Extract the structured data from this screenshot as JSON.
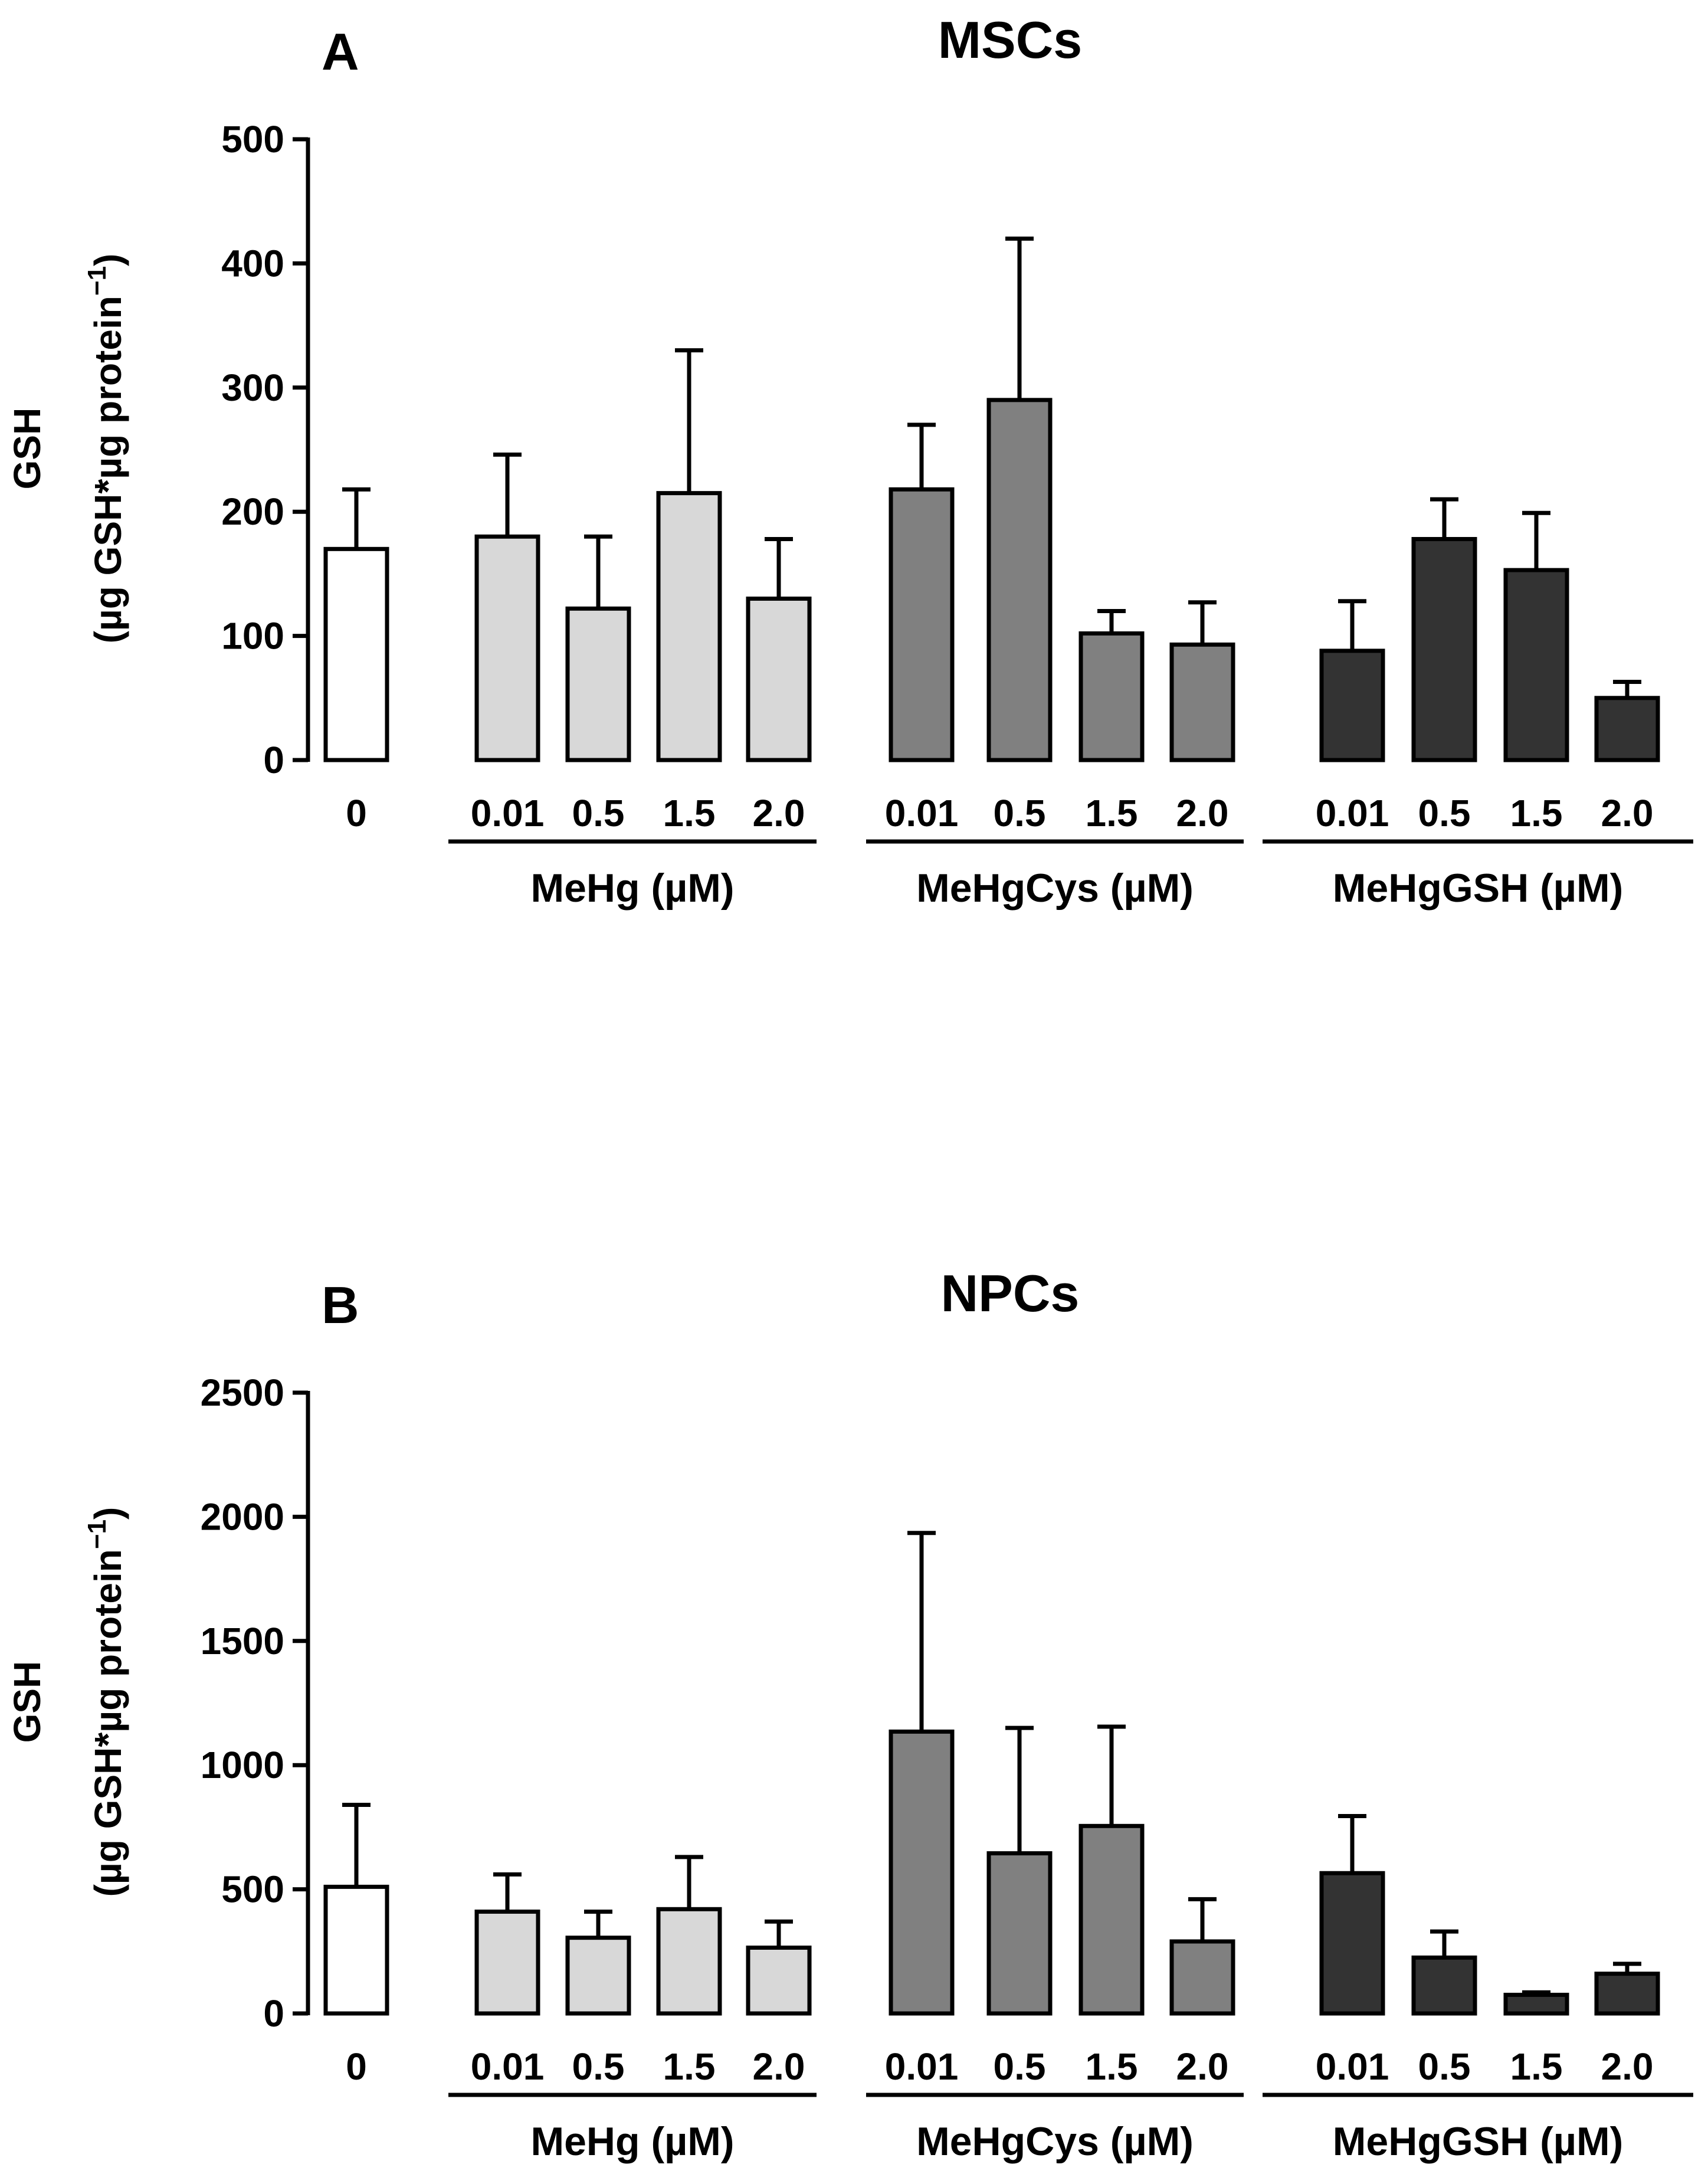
{
  "colors": {
    "control": "#ffffff",
    "MeHg": "#d8d8d8",
    "MeHgCys": "#808080",
    "MeHgGSH": "#333333",
    "stroke": "#000000"
  },
  "chart_data": [
    {
      "type": "bar",
      "panel_letter": "A",
      "title": "MSCs",
      "ylabel_line1": "GSH",
      "ylabel_line2": "(µg GSH*µg protein",
      "ylabel_sup": "−1",
      "ylabel_close": ")",
      "ylim": [
        0,
        500
      ],
      "yticks": [
        0,
        100,
        200,
        300,
        400,
        500
      ],
      "bars": [
        {
          "group": "control",
          "label": "0",
          "value": 170,
          "err": 48
        },
        {
          "group": "MeHg",
          "label": "0.01",
          "value": 180,
          "err": 66
        },
        {
          "group": "MeHg",
          "label": "0.5",
          "value": 122,
          "err": 58
        },
        {
          "group": "MeHg",
          "label": "1.5",
          "value": 215,
          "err": 115
        },
        {
          "group": "MeHg",
          "label": "2.0",
          "value": 130,
          "err": 48
        },
        {
          "group": "MeHgCys",
          "label": "0.01",
          "value": 218,
          "err": 52
        },
        {
          "group": "MeHgCys",
          "label": "0.5",
          "value": 290,
          "err": 130
        },
        {
          "group": "MeHgCys",
          "label": "1.5",
          "value": 102,
          "err": 18
        },
        {
          "group": "MeHgCys",
          "label": "2.0",
          "value": 93,
          "err": 34
        },
        {
          "group": "MeHgGSH",
          "label": "0.01",
          "value": 88,
          "err": 40
        },
        {
          "group": "MeHgGSH",
          "label": "0.5",
          "value": 178,
          "err": 32
        },
        {
          "group": "MeHgGSH",
          "label": "1.5",
          "value": 153,
          "err": 46
        },
        {
          "group": "MeHgGSH",
          "label": "2.0",
          "value": 50,
          "err": 13
        }
      ],
      "group_labels": [
        {
          "group": "MeHg",
          "label": "MeHg (µM)"
        },
        {
          "group": "MeHgCys",
          "label": "MeHgCys (µM)"
        },
        {
          "group": "MeHgGSH",
          "label": "MeHgGSH (µM)"
        }
      ]
    },
    {
      "type": "bar",
      "panel_letter": "B",
      "title": "NPCs",
      "ylabel_line1": "GSH",
      "ylabel_line2": "(µg GSH*µg protein",
      "ylabel_sup": "−1",
      "ylabel_close": ")",
      "ylim": [
        0,
        2500
      ],
      "yticks": [
        0,
        500,
        1000,
        1500,
        2000,
        2500
      ],
      "bars": [
        {
          "group": "control",
          "label": "0",
          "value": 510,
          "err": 330
        },
        {
          "group": "MeHg",
          "label": "0.01",
          "value": 410,
          "err": 150
        },
        {
          "group": "MeHg",
          "label": "0.5",
          "value": 305,
          "err": 105
        },
        {
          "group": "MeHg",
          "label": "1.5",
          "value": 420,
          "err": 210
        },
        {
          "group": "MeHg",
          "label": "2.0",
          "value": 265,
          "err": 105
        },
        {
          "group": "MeHgCys",
          "label": "0.01",
          "value": 1135,
          "err": 800
        },
        {
          "group": "MeHgCys",
          "label": "0.5",
          "value": 645,
          "err": 505
        },
        {
          "group": "MeHgCys",
          "label": "1.5",
          "value": 755,
          "err": 400
        },
        {
          "group": "MeHgCys",
          "label": "2.0",
          "value": 290,
          "err": 170
        },
        {
          "group": "MeHgGSH",
          "label": "0.01",
          "value": 565,
          "err": 230
        },
        {
          "group": "MeHgGSH",
          "label": "0.5",
          "value": 225,
          "err": 105
        },
        {
          "group": "MeHgGSH",
          "label": "1.5",
          "value": 75,
          "err": 10
        },
        {
          "group": "MeHgGSH",
          "label": "2.0",
          "value": 160,
          "err": 40
        }
      ],
      "group_labels": [
        {
          "group": "MeHg",
          "label": "MeHg (µM)"
        },
        {
          "group": "MeHgCys",
          "label": "MeHgCys (µM)"
        },
        {
          "group": "MeHgGSH",
          "label": "MeHgGSH (µM)"
        }
      ]
    }
  ]
}
